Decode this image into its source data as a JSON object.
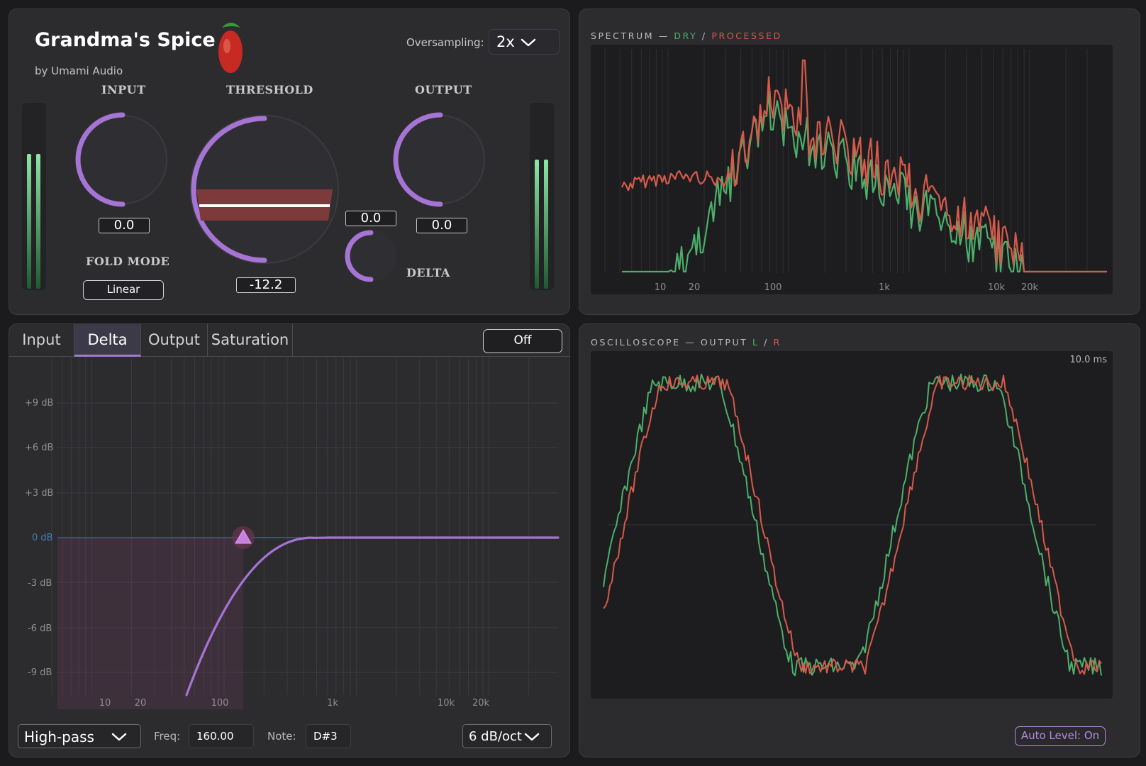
{
  "header": {
    "title": "Grandma's Spice",
    "byline": "by Umami Audio",
    "oversampling_label": "Oversampling:",
    "oversampling_value": "2x"
  },
  "knobs": {
    "input": {
      "label": "INPUT",
      "value": "0.0"
    },
    "threshold": {
      "label": "THRESHOLD",
      "value": "-12.2"
    },
    "output": {
      "label": "OUTPUT",
      "value": "0.0"
    },
    "delta": {
      "label": "DELTA",
      "value": "0.0"
    }
  },
  "fold_mode": {
    "label": "FOLD MODE",
    "value": "Linear"
  },
  "spectrum": {
    "title_prefix": "SPECTRUM — ",
    "dry": "DRY",
    "sep": " / ",
    "processed": "PROCESSED",
    "x_ticks": [
      "10",
      "20",
      "100",
      "1k",
      "10k",
      "20k"
    ]
  },
  "eq": {
    "tabs": [
      "Input",
      "Delta",
      "Output",
      "Saturation"
    ],
    "active_tab": "Delta",
    "toggle_label": "Off",
    "y_ticks": [
      "+9 dB",
      "+6 dB",
      "+3 dB",
      "0 dB",
      "-3 dB",
      "-6 dB",
      "-9 dB"
    ],
    "x_ticks": [
      "10",
      "20",
      "100",
      "1k",
      "10k",
      "20k"
    ],
    "filter_type": "High-pass",
    "freq_label": "Freq:",
    "freq_value": "160.00",
    "note_label": "Note:",
    "note_value": "D#3",
    "slope": "6 dB/oct"
  },
  "oscilloscope": {
    "title_prefix": "OSCILLOSCOPE — OUTPUT ",
    "left": "L",
    "sep": " / ",
    "right": "R",
    "time_label": "10.0 ms",
    "auto_level": "Auto Level: On"
  },
  "colors": {
    "accent": "#a674d4",
    "dry_green": "#4caf6a",
    "processed_red": "#d65a4a",
    "zero_line": "#4a7ab8"
  }
}
